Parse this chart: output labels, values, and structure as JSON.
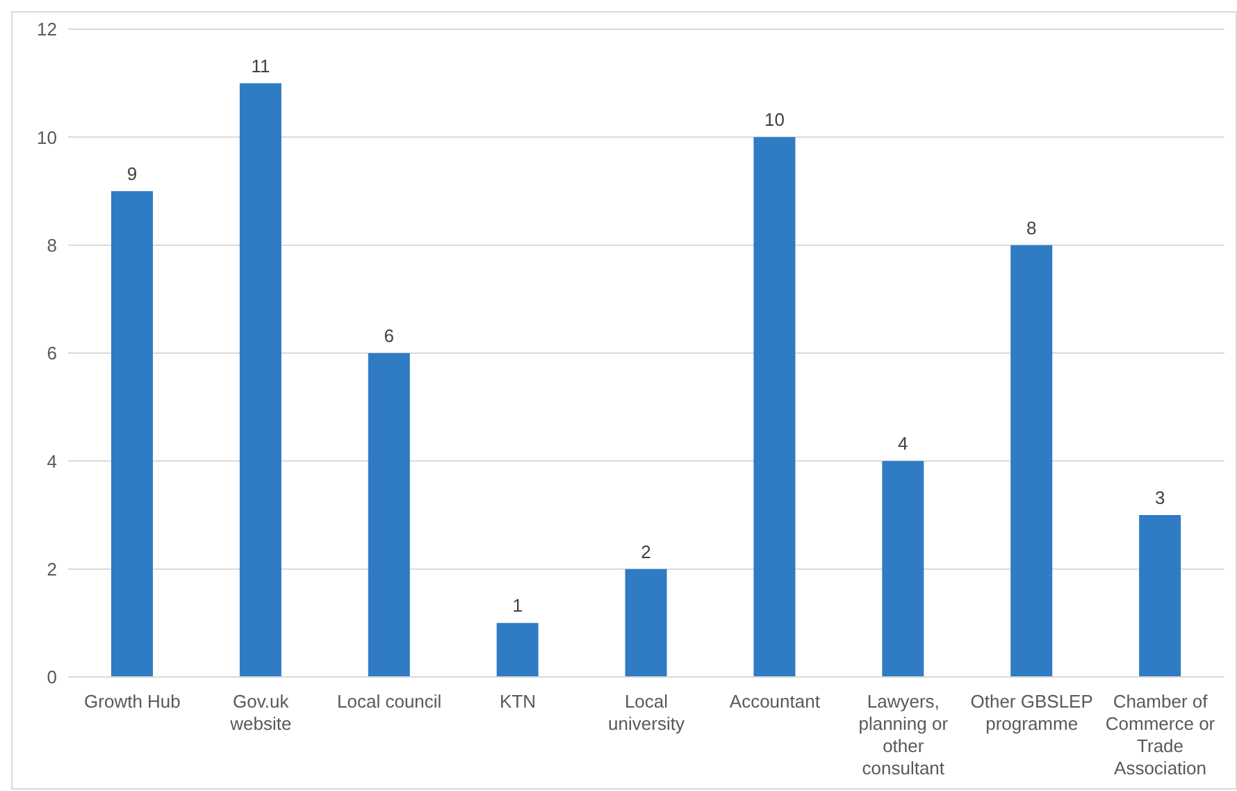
{
  "chart_data": {
    "type": "bar",
    "categories": [
      "Growth Hub",
      "Gov.uk website",
      "Local council",
      "KTN",
      "Local university",
      "Accountant",
      "Lawyers, planning or other consultant",
      "Other GBSLEP programme",
      "Chamber of Commerce or Trade Association"
    ],
    "values": [
      9,
      11,
      6,
      1,
      2,
      10,
      4,
      8,
      3
    ],
    "color": "#2f7bc4",
    "ylim": [
      0,
      12
    ],
    "yticks": [
      0,
      2,
      4,
      6,
      8,
      10,
      12
    ],
    "grid": "y",
    "data_labels": true
  }
}
